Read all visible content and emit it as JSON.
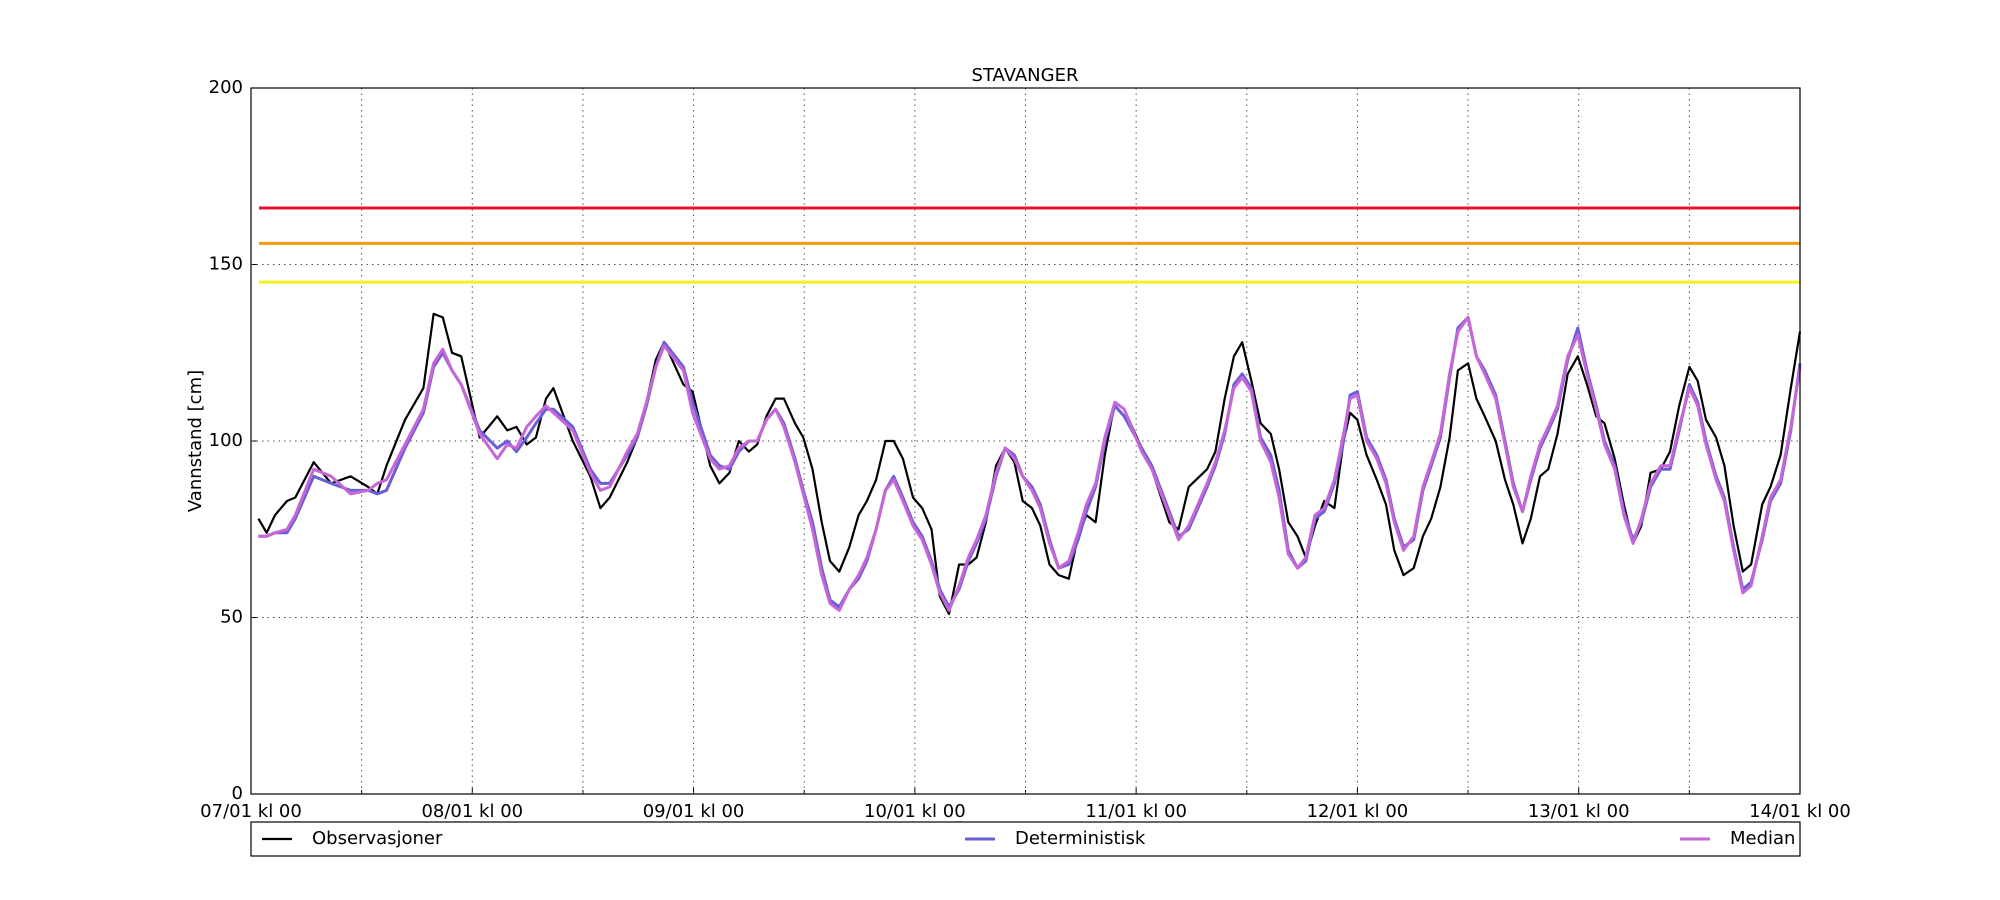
{
  "chart_data": {
    "type": "line",
    "title": "STAVANGER",
    "ylabel": "Vannstand [cm]",
    "x": [
      0.8,
      1.7,
      2.6,
      3.9,
      4.8,
      6.8,
      8.7,
      10.8,
      12.7,
      13.7,
      14.7,
      16.7,
      18.7,
      19.8,
      20.8,
      21.8,
      22.8,
      24.8,
      26.7,
      27.8,
      28.8,
      29.9,
      30.9,
      32,
      32.8,
      34.9,
      36.8,
      37.9,
      38.9,
      40.8,
      41.9,
      42.9,
      43.9,
      44.8,
      46.9,
      47.9,
      49.8,
      50.8,
      51.9,
      52.9,
      54,
      54.9,
      55.9,
      56.9,
      57.8,
      59,
      59.9,
      60.9,
      61.9,
      62.8,
      63.8,
      64.9,
      65.9,
      66.8,
      67.8,
      68.8,
      69.7,
      70.7,
      71.8,
      72.8,
      73.8,
      74.7,
      75.7,
      76.8,
      77.8,
      78.7,
      79.7,
      80.8,
      81.8,
      82.8,
      83.7,
      84.7,
      85.6,
      86.6,
      87.6,
      88.7,
      89.7,
      90.6,
      91.6,
      92.6,
      93.7,
      94.7,
      96.6,
      97.7,
      99.6,
      100.6,
      101.7,
      103.7,
      104.6,
      105.6,
      106.6,
      107.5,
      108.5,
      109.5,
      110.6,
      111.5,
      112.5,
      113.5,
      114.4,
      115.4,
      116.4,
      117.5,
      118.5,
      119.2,
      120,
      121,
      122.1,
      123.1,
      124,
      125,
      126.1,
      127.1,
      128,
      129,
      130,
      130.9,
      132,
      132.9,
      133.8,
      135,
      136,
      136.9,
      137.9,
      138.8,
      139.8,
      140.7,
      141.7,
      142.8,
      143.9,
      144.9,
      145.9,
      146.8,
      147.9,
      148.9,
      149.9,
      150.8,
      151.8,
      152.9,
      153.9,
      154.9,
      156,
      156.9,
      157.8,
      158.9,
      159.8,
      160.8,
      161.8,
      162.7,
      163.9,
      164.8,
      165.9,
      167,
      168
    ],
    "series": [
      {
        "name": "Observasjoner",
        "color": "#000000",
        "values": [
          78,
          74,
          79,
          83,
          84,
          94,
          88,
          90,
          87,
          85,
          93,
          106,
          115,
          136,
          135,
          125,
          124,
          101,
          107,
          103,
          104,
          99,
          101,
          112,
          115,
          100,
          90,
          81,
          84,
          94,
          101,
          111,
          123,
          128,
          116,
          114,
          93,
          88,
          91,
          100,
          97,
          99,
          107,
          112,
          112,
          105,
          101,
          92,
          77,
          66,
          63,
          70,
          79,
          83,
          89,
          100,
          100,
          95,
          84,
          81,
          75,
          56,
          51,
          65,
          65,
          67,
          77,
          93,
          98,
          94,
          83,
          81,
          76,
          65,
          62,
          61,
          73,
          79,
          77,
          96,
          111,
          109,
          98,
          92,
          77,
          75,
          87,
          92,
          97,
          112,
          124,
          128,
          117,
          105,
          102,
          92,
          77,
          73,
          67,
          76,
          83,
          81,
          100,
          108,
          106,
          96,
          89,
          82,
          69,
          62,
          64,
          73,
          78,
          87,
          101,
          120,
          122,
          112,
          107,
          100,
          89,
          82,
          71,
          78,
          90,
          92,
          102,
          119,
          124,
          116,
          107,
          105,
          95,
          82,
          71,
          76,
          91,
          92,
          97,
          110,
          121,
          117,
          106,
          101,
          93,
          76,
          63,
          65,
          82,
          87,
          96,
          115,
          131
        ]
      },
      {
        "name": "Deterministisk",
        "color": "#6a5fd6",
        "values": [
          73,
          73,
          74,
          74,
          78,
          90,
          88,
          86,
          86,
          85,
          86,
          98,
          108,
          121,
          125,
          120,
          116,
          103,
          98,
          100,
          97,
          101,
          105,
          109,
          109,
          104,
          92,
          88,
          88,
          96,
          101,
          110,
          121,
          128,
          121,
          111,
          96,
          93,
          92,
          97,
          100,
          100,
          106,
          109,
          105,
          95,
          86,
          77,
          64,
          55,
          53,
          58,
          61,
          66,
          75,
          86,
          90,
          84,
          77,
          73,
          66,
          58,
          53,
          58,
          66,
          71,
          78,
          90,
          98,
          96,
          90,
          87,
          82,
          72,
          64,
          65,
          72,
          80,
          87,
          100,
          110,
          107,
          98,
          93,
          80,
          73,
          75,
          87,
          93,
          102,
          116,
          119,
          115,
          101,
          96,
          86,
          69,
          64,
          66,
          78,
          80,
          88,
          100,
          113,
          114,
          101,
          96,
          89,
          78,
          70,
          72,
          86,
          93,
          101,
          118,
          132,
          135,
          124,
          120,
          113,
          100,
          88,
          80,
          89,
          98,
          103,
          109,
          123,
          132,
          120,
          110,
          100,
          93,
          80,
          72,
          77,
          87,
          92,
          92,
          103,
          116,
          111,
          100,
          90,
          84,
          70,
          58,
          60,
          72,
          83,
          88,
          103,
          122
        ]
      },
      {
        "name": "Median",
        "color": "#c766d6",
        "values": [
          73,
          73,
          74,
          75,
          79,
          92,
          90,
          85,
          86,
          88,
          89,
          99,
          109,
          122,
          126,
          120,
          116,
          102,
          95,
          99,
          98,
          104,
          107,
          110,
          108,
          103,
          91,
          86,
          87,
          97,
          102,
          111,
          121,
          127,
          120,
          108,
          95,
          92,
          93,
          98,
          100,
          100,
          106,
          109,
          104,
          94,
          85,
          75,
          62,
          54,
          52,
          58,
          62,
          67,
          75,
          86,
          89,
          83,
          76,
          72,
          65,
          57,
          52,
          59,
          67,
          72,
          79,
          91,
          98,
          95,
          90,
          86,
          81,
          71,
          64,
          66,
          74,
          82,
          88,
          101,
          111,
          109,
          97,
          92,
          79,
          72,
          76,
          88,
          94,
          103,
          115,
          118,
          114,
          100,
          94,
          84,
          68,
          64,
          67,
          79,
          81,
          89,
          102,
          112,
          113,
          100,
          95,
          88,
          77,
          69,
          73,
          87,
          94,
          102,
          119,
          131,
          135,
          124,
          119,
          112,
          99,
          87,
          80,
          90,
          99,
          104,
          110,
          124,
          130,
          119,
          109,
          99,
          92,
          79,
          71,
          78,
          88,
          93,
          93,
          104,
          115,
          110,
          99,
          89,
          83,
          69,
          57,
          59,
          73,
          84,
          89,
          104,
          121
        ]
      }
    ],
    "xlim": [
      0,
      168
    ],
    "ylim": [
      0,
      200
    ],
    "xticks": [
      {
        "value": 0,
        "label": "07/01 kl 00"
      },
      {
        "value": 24,
        "label": "08/01 kl 00"
      },
      {
        "value": 48,
        "label": "09/01 kl 00"
      },
      {
        "value": 72,
        "label": "10/01 kl 00"
      },
      {
        "value": 96,
        "label": "11/01 kl 00"
      },
      {
        "value": 120,
        "label": "12/01 kl 00"
      },
      {
        "value": 144,
        "label": "13/01 kl 00"
      },
      {
        "value": 168,
        "label": "14/01 kl 00"
      }
    ],
    "minor_xticks": [
      12,
      36,
      60,
      84,
      108,
      132,
      156
    ],
    "yticks": [
      0,
      50,
      100,
      150,
      200
    ],
    "grid": true,
    "hlines": [
      {
        "value": 166,
        "color": "#e8102a"
      },
      {
        "value": 156,
        "color": "#f39c12"
      },
      {
        "value": 145,
        "color": "#f2f21a"
      }
    ],
    "legend": "bottom"
  }
}
